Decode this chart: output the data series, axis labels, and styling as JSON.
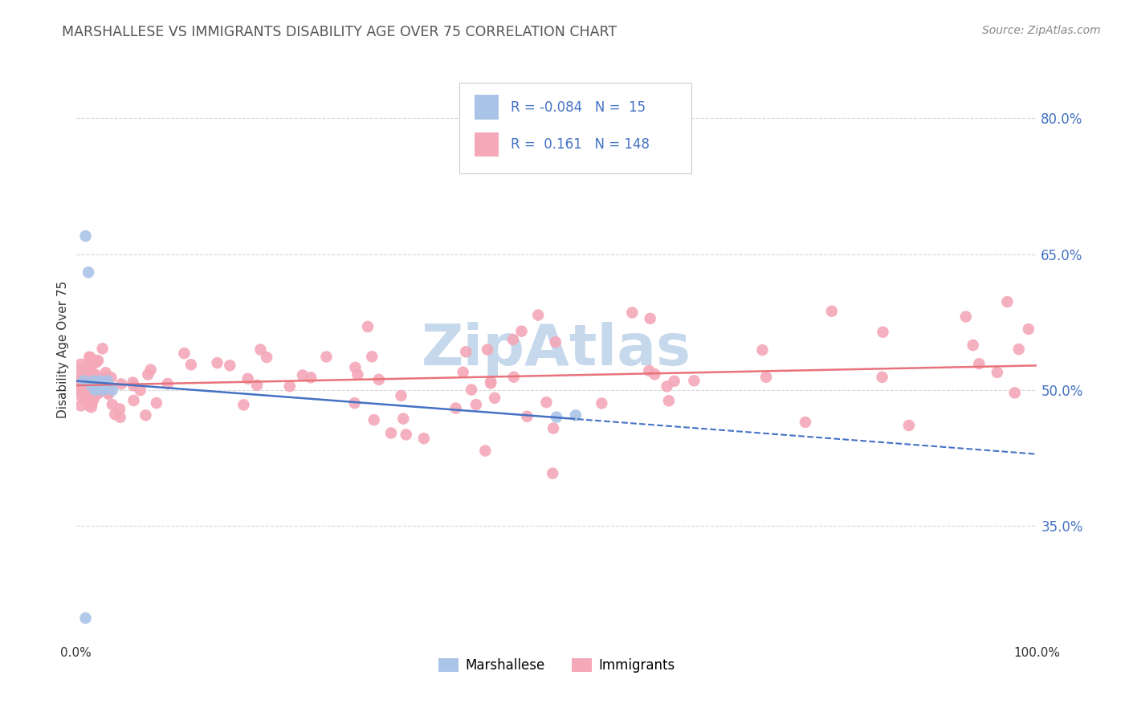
{
  "title": "MARSHALLESE VS IMMIGRANTS DISABILITY AGE OVER 75 CORRELATION CHART",
  "source": "Source: ZipAtlas.com",
  "ylabel": "Disability Age Over 75",
  "ytick_labels": [
    "35.0%",
    "50.0%",
    "65.0%",
    "80.0%"
  ],
  "ytick_values": [
    0.35,
    0.5,
    0.65,
    0.8
  ],
  "xlim": [
    0.0,
    1.0
  ],
  "ylim": [
    0.22,
    0.87
  ],
  "legend_R": [
    -0.084,
    0.161
  ],
  "legend_N": [
    15,
    148
  ],
  "marshallese_color": "#aac4e8",
  "immigrants_color": "#f4a8b8",
  "marshallese_line_color": "#4472c4",
  "immigrants_line_color": "#e8737a",
  "title_color": "#555555",
  "source_color": "#888888",
  "watermark_color": "#c5d8ec",
  "grid_color": "#d8d8d8",
  "marshallese_x": [
    0.008,
    0.01,
    0.013,
    0.016,
    0.018,
    0.02,
    0.022,
    0.025,
    0.028,
    0.03,
    0.033,
    0.038,
    0.5,
    0.52,
    0.01
  ],
  "marshallese_y": [
    0.51,
    0.67,
    0.63,
    0.505,
    0.51,
    0.5,
    0.505,
    0.51,
    0.5,
    0.505,
    0.51,
    0.5,
    0.47,
    0.472,
    0.248
  ]
}
